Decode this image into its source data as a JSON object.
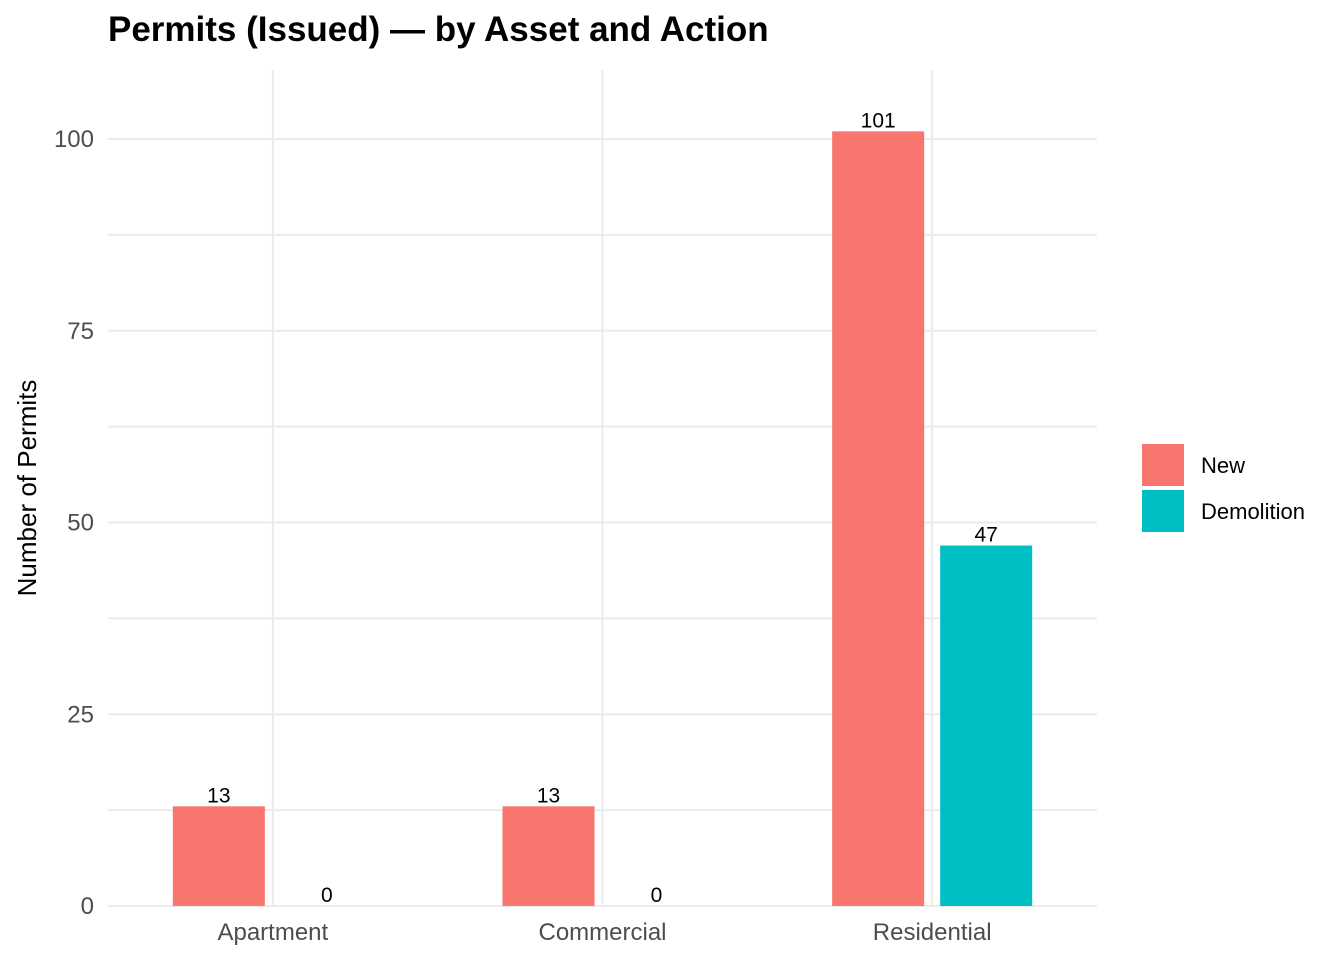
{
  "chart_data": {
    "type": "bar",
    "title": "Permits (Issued) — by Asset and Action",
    "xlabel": "",
    "ylabel": "Number of Permits",
    "categories": [
      "Apartment",
      "Commercial",
      "Residential"
    ],
    "series": [
      {
        "name": "New",
        "color": "#F8766D",
        "values": [
          13,
          13,
          101
        ]
      },
      {
        "name": "Demolition",
        "color": "#00BFC4",
        "values": [
          0,
          0,
          47
        ]
      }
    ],
    "ylim": [
      0,
      109
    ],
    "yticks": [
      0,
      25,
      50,
      75,
      100
    ],
    "grid": true,
    "legend_position": "right"
  }
}
